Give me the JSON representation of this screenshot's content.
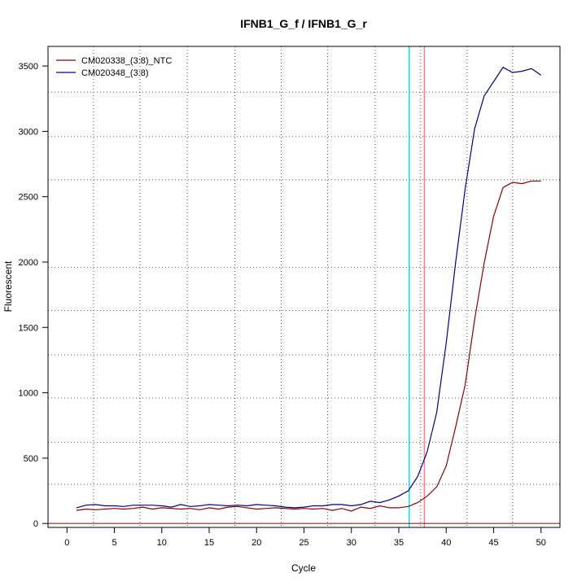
{
  "chart_data": {
    "type": "line",
    "title": "IFNB1_G_f / IFNB1_G_r",
    "xlabel": "Cycle",
    "ylabel": "Fluorescent",
    "xlim": [
      -2,
      52
    ],
    "ylim": [
      -30,
      3650
    ],
    "x_ticks": [
      0,
      5,
      10,
      15,
      20,
      25,
      30,
      35,
      40,
      45,
      50
    ],
    "y_ticks": [
      0,
      500,
      1000,
      1500,
      2000,
      2500,
      3000,
      3500
    ],
    "grid": true,
    "legend_position": "top-left",
    "vertical_grid_x": [
      2.8,
      7.7,
      12.7,
      17.7,
      22.6,
      27.5,
      32.5,
      37.3,
      42.2,
      47.0
    ],
    "horizontal_grid_y": [
      300,
      620,
      960,
      1290,
      1630,
      1960,
      2630,
      2960,
      3300
    ],
    "threshold_lines": [
      {
        "x": 36.1,
        "color": "#00e5ee"
      },
      {
        "x": 37.7,
        "color": "#ff7f7f"
      }
    ],
    "baseline": {
      "y": 0,
      "color": "#8b0000"
    },
    "x": [
      1,
      2,
      3,
      4,
      5,
      6,
      7,
      8,
      9,
      10,
      11,
      12,
      13,
      14,
      15,
      16,
      17,
      18,
      19,
      20,
      21,
      22,
      23,
      24,
      25,
      26,
      27,
      28,
      29,
      30,
      31,
      32,
      33,
      34,
      35,
      36,
      37,
      38,
      39,
      40,
      41,
      42,
      43,
      44,
      45,
      46,
      47,
      48,
      49,
      50
    ],
    "series": [
      {
        "name": "CM020338_(3:8)_NTC",
        "color": "#8b0000",
        "values": [
          100,
          110,
          105,
          110,
          115,
          110,
          115,
          125,
          110,
          120,
          115,
          110,
          115,
          105,
          120,
          110,
          125,
          130,
          120,
          110,
          115,
          120,
          115,
          110,
          115,
          110,
          115,
          100,
          115,
          95,
          125,
          115,
          135,
          120,
          120,
          130,
          160,
          210,
          280,
          440,
          740,
          1060,
          1560,
          1990,
          2350,
          2570,
          2610,
          2600,
          2620,
          2620
        ]
      },
      {
        "name": "CM020348_(3:8)",
        "color": "#00008b",
        "values": [
          120,
          140,
          145,
          135,
          135,
          130,
          140,
          140,
          140,
          135,
          125,
          145,
          130,
          135,
          145,
          140,
          135,
          140,
          135,
          145,
          140,
          135,
          125,
          120,
          125,
          135,
          135,
          145,
          145,
          135,
          145,
          170,
          160,
          180,
          210,
          250,
          360,
          550,
          850,
          1380,
          2000,
          2560,
          3020,
          3270,
          3380,
          3490,
          3450,
          3460,
          3480,
          3430
        ]
      }
    ]
  }
}
